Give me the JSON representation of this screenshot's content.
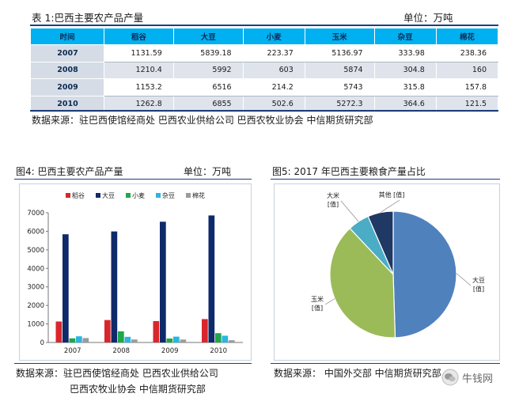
{
  "table": {
    "title": "表 1:巴西主要农产品产量",
    "unit": "单位：万吨",
    "headers": [
      "时间",
      "稻谷",
      "大豆",
      "小麦",
      "玉米",
      "杂豆",
      "棉花"
    ],
    "rows": [
      [
        "2007",
        "1131.59",
        "5839.18",
        "223.37",
        "5136.97",
        "333.98",
        "238.36"
      ],
      [
        "2008",
        "1210.4",
        "5992",
        "603",
        "5874",
        "304.8",
        "160"
      ],
      [
        "2009",
        "1153.2",
        "6516",
        "214.2",
        "5743",
        "315.8",
        "157.8"
      ],
      [
        "2010",
        "1262.8",
        "6855",
        "502.6",
        "5272.3",
        "364.6",
        "121.5"
      ]
    ],
    "source": "数据来源：驻巴西使馆经商处  巴西农业供给公司  巴西农牧业协会  中信期货研究部"
  },
  "fig4": {
    "title": "图4: 巴西主要农产品产量",
    "unit": "单位：万吨",
    "source_line1": "数据来源：驻巴西使馆经商处   巴西农业供给公司",
    "source_line2": "巴西农牧业协会       中信期货研究部"
  },
  "fig5": {
    "title": "图5: 2017 年巴西主要粮食产量占比",
    "source": "数据来源：  中国外交部   中信期货研究部",
    "watermark": "牛钱网"
  },
  "colors": {
    "稻谷": "#d9262c",
    "大豆": "#0e2a6b",
    "小麦": "#1fa84a",
    "杂豆": "#2bb5e3",
    "棉花": "#9b9b9b",
    "pie_soy": "#4f81bd",
    "pie_corn": "#9bbb59",
    "pie_rice": "#4bacc6",
    "pie_other": "#1f3864"
  },
  "chart_data": [
    {
      "type": "bar",
      "categories": [
        "2007",
        "2008",
        "2009",
        "2010"
      ],
      "series": [
        {
          "name": "稻谷",
          "values": [
            1131.59,
            1210.4,
            1153.2,
            1262.8
          ]
        },
        {
          "name": "大豆",
          "values": [
            5839.18,
            5992,
            6516,
            6855
          ]
        },
        {
          "name": "小麦",
          "values": [
            223.37,
            603,
            214.2,
            502.6
          ]
        },
        {
          "name": "杂豆",
          "values": [
            333.98,
            304.8,
            315.8,
            364.6
          ]
        },
        {
          "name": "棉花",
          "values": [
            238.36,
            160,
            157.8,
            121.5
          ]
        }
      ],
      "ylim": [
        0,
        7000
      ],
      "yticks": [
        "0",
        "1000",
        "2000",
        "3000",
        "4000",
        "5000",
        "6000",
        "7000"
      ],
      "legend": "top",
      "grid": false
    },
    {
      "type": "pie",
      "labels": [
        "大豆\n[值]",
        "玉米\n[值]",
        "大米\n[值]",
        "其他 [值]"
      ],
      "slices": [
        {
          "label_line1": "大豆",
          "label_line2": "[值]",
          "value": 0.495
        },
        {
          "label_line1": "玉米",
          "label_line2": "[值]",
          "value": 0.385
        },
        {
          "label_line1": "大米",
          "label_line2": "[值]",
          "value": 0.055
        },
        {
          "label_line1": "其他 [值]",
          "label_line2": "",
          "value": 0.065
        }
      ],
      "legend": "none"
    }
  ]
}
